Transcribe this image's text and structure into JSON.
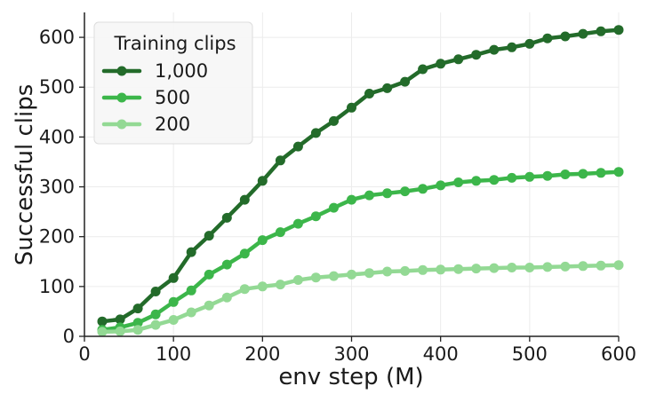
{
  "chart_data": {
    "type": "line",
    "title": "",
    "xlabel": "env step (M)",
    "ylabel": "Successful clips",
    "xlim": [
      0,
      600
    ],
    "ylim": [
      0,
      650
    ],
    "xticks": [
      0,
      100,
      200,
      300,
      400,
      500,
      600
    ],
    "yticks": [
      0,
      100,
      200,
      300,
      400,
      500,
      600
    ],
    "grid": true,
    "legend": {
      "title": "Training clips",
      "placement": "top-left"
    },
    "x": [
      20,
      40,
      60,
      80,
      100,
      120,
      140,
      160,
      180,
      200,
      220,
      240,
      260,
      280,
      300,
      320,
      340,
      360,
      380,
      400,
      420,
      440,
      460,
      480,
      500,
      520,
      540,
      560,
      580,
      600
    ],
    "series": [
      {
        "name": "1,000",
        "color": "#236b2a",
        "values": [
          30,
          34,
          56,
          90,
          117,
          169,
          202,
          238,
          274,
          312,
          353,
          381,
          408,
          432,
          459,
          487,
          498,
          511,
          536,
          547,
          556,
          565,
          575,
          580,
          587,
          598,
          602,
          607,
          612,
          615
        ]
      },
      {
        "name": "500",
        "color": "#3cb64a",
        "values": [
          13,
          18,
          27,
          44,
          69,
          92,
          124,
          144,
          166,
          193,
          209,
          226,
          241,
          258,
          274,
          283,
          287,
          291,
          296,
          303,
          309,
          312,
          314,
          318,
          320,
          322,
          325,
          326,
          328,
          330
        ]
      },
      {
        "name": "200",
        "color": "#93d994",
        "values": [
          9,
          10,
          13,
          23,
          33,
          48,
          62,
          78,
          95,
          100,
          104,
          113,
          118,
          121,
          124,
          127,
          130,
          131,
          133,
          134,
          135,
          136,
          137,
          138,
          138,
          139,
          140,
          141,
          142,
          143
        ]
      }
    ]
  }
}
